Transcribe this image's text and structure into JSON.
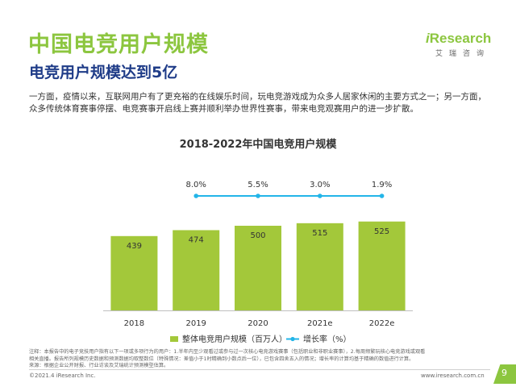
{
  "header": {
    "title": "中国电竞用户规模",
    "subtitle": "电竞用户规模达到5亿"
  },
  "logo": {
    "main_prefix": "i",
    "main_rest": "Research",
    "sub": "艾瑞咨询"
  },
  "intro": {
    "line1": "一方面，疫情以来，互联网用户有了更充裕的在线娱乐时间，玩电竞游戏成为众多人居家休闲的主要方式之一；另一方面，",
    "line2": "众多传统体育赛事停摆、电竞赛事开启线上赛并顺利举办世界性赛事，带来电竞观赛用户的进一步扩散。"
  },
  "chart_data": {
    "type": "bar",
    "title": "2018-2022年中国电竞用户规模",
    "categories": [
      "2018",
      "2019",
      "2020",
      "2021e",
      "2022e"
    ],
    "series": [
      {
        "name": "整体电竞用户规模（百万人）",
        "type": "bar",
        "values": [
          439,
          474,
          500,
          515,
          525
        ],
        "color": "#a3c83a"
      },
      {
        "name": "增长率（%）",
        "type": "line",
        "values": [
          null,
          8.0,
          5.5,
          3.0,
          1.9
        ],
        "labels": [
          "",
          "8.0%",
          "5.5%",
          "3.0%",
          "1.9%"
        ],
        "color": "#23b5e8"
      }
    ],
    "bar_labels": [
      "439",
      "474",
      "500",
      "515",
      "525"
    ],
    "legend_position": "bottom",
    "grid": false
  },
  "notes": {
    "line1": "注释：本报告中的电子竞技用户指有以下一项或多项行为的用户：1.半年内至少观看过或参与过一次核心电竞游戏赛事（包括职业和非职业赛事），2.每周频繁玩核心电竞游戏或观看",
    "line2": "相关直播。报告所列规模历史数据和预测数据均取整数位（特殊情况：差值小于1时精确到小数点后一位），已包含四舍五入的情况；增长率的计算均基于精确的数值进行计算。",
    "line3": "来源：根据企业公开财报、行业访谈及艾瑞统计预测模型估算。"
  },
  "footer": {
    "copyright": "©2021.4 iResearch Inc.",
    "website": "www.iresearch.com.cn",
    "page_number": "9"
  }
}
